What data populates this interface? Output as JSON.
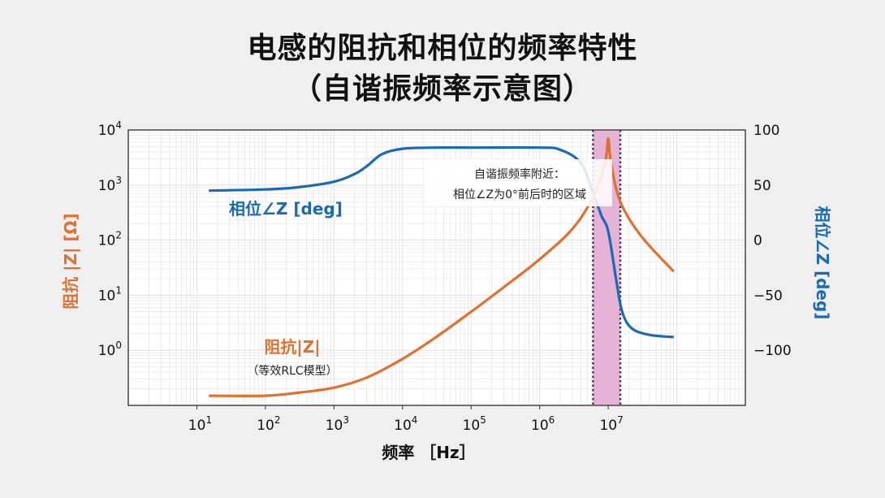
{
  "title": {
    "line1": "电感的阻抗和相位的频率特性",
    "line2": "（自谐振频率示意图）"
  },
  "colors": {
    "impedance": "#e07030",
    "phase": "#1a6ab5",
    "band_fill": "#e4b3d6",
    "background": "#efefef",
    "plot_background": "#ffffff",
    "grid": "#e3e3e3"
  },
  "chart_data": {
    "type": "line",
    "x_scale": "log",
    "xlim": [
      1,
      1000000000
    ],
    "xlabel": "频率 ［Hz］",
    "x_ticks": [
      {
        "value": 10,
        "base": "10",
        "exp": "1"
      },
      {
        "value": 100,
        "base": "10",
        "exp": "2"
      },
      {
        "value": 1000,
        "base": "10",
        "exp": "3"
      },
      {
        "value": 10000,
        "base": "10",
        "exp": "4"
      },
      {
        "value": 100000,
        "base": "10",
        "exp": "5"
      },
      {
        "value": 1000000,
        "base": "10",
        "exp": "6"
      },
      {
        "value": 10000000,
        "base": "10",
        "exp": "7"
      }
    ],
    "y_left": {
      "label": "阻抗 |Z| [Ω]",
      "scale": "log",
      "ylim": [
        0.1,
        10000
      ],
      "ticks": [
        {
          "value": 1,
          "base": "10",
          "exp": "0"
        },
        {
          "value": 10,
          "base": "10",
          "exp": "1"
        },
        {
          "value": 100,
          "base": "10",
          "exp": "2"
        },
        {
          "value": 1000,
          "base": "10",
          "exp": "3"
        },
        {
          "value": 10000,
          "base": "10",
          "exp": "4"
        }
      ]
    },
    "y_right": {
      "label": "相位∠Z [deg]",
      "ylim": [
        -150,
        100
      ],
      "ticks": [
        {
          "value": 100,
          "label": "100"
        },
        {
          "value": 50,
          "label": "50"
        },
        {
          "value": 0,
          "label": "0"
        },
        {
          "value": -50,
          "label": "−50"
        },
        {
          "value": -100,
          "label": "−100"
        }
      ]
    },
    "grid": true,
    "series": [
      {
        "name": "阻抗|Z|",
        "sublabel": "（等效RLC模型）",
        "axis": "left",
        "points": [
          [
            15,
            0.15
          ],
          [
            100,
            0.15
          ],
          [
            300,
            0.17
          ],
          [
            1000,
            0.21
          ],
          [
            3000,
            0.32
          ],
          [
            10000,
            0.7
          ],
          [
            30000,
            1.7
          ],
          [
            100000,
            5
          ],
          [
            300000,
            14
          ],
          [
            1000000,
            45
          ],
          [
            3000000,
            160
          ],
          [
            6000000,
            600
          ],
          [
            9000000,
            2500
          ],
          [
            10000000,
            7000
          ],
          [
            11000000,
            2500
          ],
          [
            15000000,
            500
          ],
          [
            30000000,
            120
          ],
          [
            90000000,
            27
          ]
        ]
      },
      {
        "name": "相位∠Z [deg]",
        "axis": "right",
        "points": [
          [
            15,
            45
          ],
          [
            100,
            46
          ],
          [
            300,
            48
          ],
          [
            1000,
            53
          ],
          [
            2000,
            60
          ],
          [
            3000,
            67
          ],
          [
            5000,
            78
          ],
          [
            10000,
            83
          ],
          [
            30000,
            84
          ],
          [
            100000,
            84
          ],
          [
            1000000,
            84
          ],
          [
            2000000,
            82
          ],
          [
            4000000,
            70
          ],
          [
            6000000,
            43
          ],
          [
            8000000,
            22
          ],
          [
            10000000,
            8
          ],
          [
            13000000,
            -35
          ],
          [
            16000000,
            -65
          ],
          [
            22000000,
            -80
          ],
          [
            40000000,
            -86
          ],
          [
            90000000,
            -88
          ]
        ]
      }
    ],
    "shaded_band": {
      "x": [
        6000000,
        15000000
      ]
    },
    "annotation": {
      "line1": "自谐振频率附近：",
      "line2": "相位∠Z为0°前后时的区域"
    }
  }
}
